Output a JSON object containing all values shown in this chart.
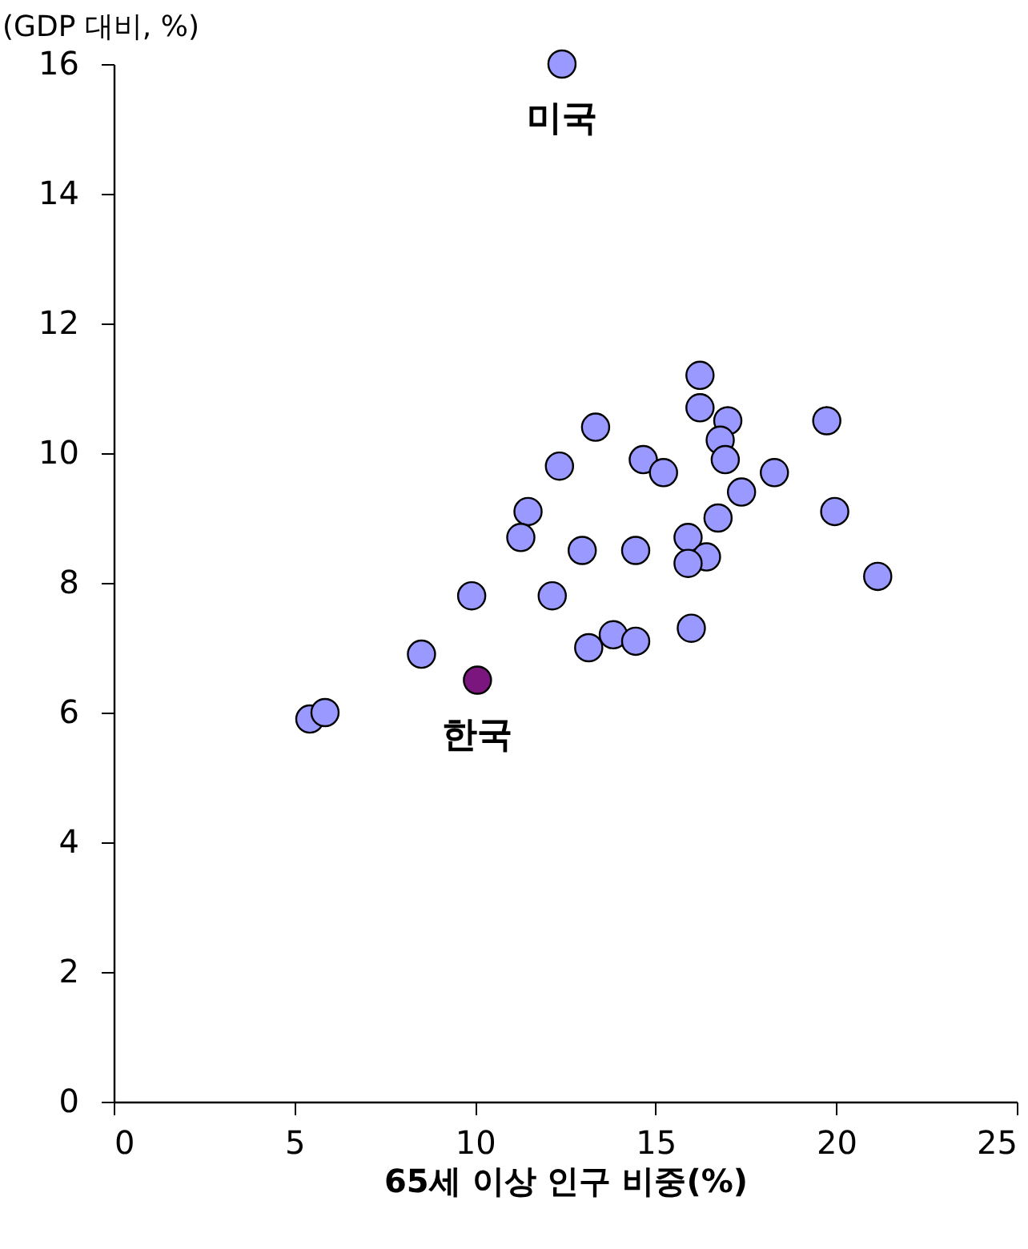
{
  "chart_data": {
    "type": "scatter",
    "xlabel": "65세 이상 인구 비중(%)",
    "ylabel": "(GDP 대비, %)",
    "xlim": [
      0,
      25
    ],
    "xticks": [
      0,
      5,
      10,
      15,
      20,
      25
    ],
    "ylim": [
      0,
      16
    ],
    "yticks": [
      0,
      2,
      4,
      6,
      8,
      10,
      12,
      14,
      16
    ],
    "grid": false,
    "legend": false,
    "marker": "circle",
    "series": [
      {
        "color": "#9999ff",
        "x": [
          16.23,
          16.23,
          17.0,
          19.74,
          13.34,
          16.79,
          16.93,
          14.66,
          12.34,
          15.22,
          18.29,
          17.38,
          11.47,
          19.96,
          16.73,
          11.27,
          15.9,
          12.97,
          14.45,
          16.41,
          15.9,
          21.15,
          9.91,
          12.14,
          13.83,
          15.99,
          13.15,
          14.45,
          8.52,
          5.43,
          5.85,
          12.41
        ],
        "values": [
          11.2,
          10.7,
          10.5,
          10.5,
          10.4,
          10.2,
          9.9,
          9.9,
          9.8,
          9.7,
          9.7,
          9.4,
          9.1,
          9.1,
          9.0,
          8.7,
          8.7,
          8.5,
          8.5,
          8.4,
          8.3,
          8.1,
          7.8,
          7.8,
          7.2,
          7.3,
          7.0,
          7.1,
          6.9,
          5.9,
          6.0,
          16.0
        ]
      },
      {
        "color": "#7b167f",
        "x": [
          10.07
        ],
        "values": [
          6.5
        ]
      }
    ],
    "annotations": [
      {
        "text": "미국",
        "x": 12.41,
        "y": 16.0
      },
      {
        "text": "한국",
        "x": 10.07,
        "y": 6.5
      }
    ]
  }
}
